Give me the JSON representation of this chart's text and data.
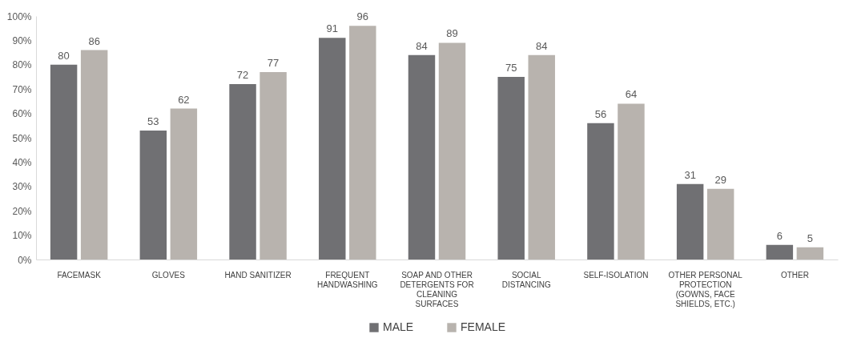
{
  "chart_data": {
    "type": "bar",
    "categories": [
      "FACEMASK",
      "GLOVES",
      "HAND SANITIZER",
      "FREQUENT HANDWASHING",
      "SOAP AND OTHER DETERGENTS FOR CLEANING SURFACES",
      "SOCIAL DISTANCING",
      "SELF-ISOLATION",
      "OTHER PERSONAL PROTECTION (GOWNS, FACE SHIELDS, ETC.)",
      "OTHER"
    ],
    "series": [
      {
        "name": "MALE",
        "color": "#707073",
        "values": [
          80,
          53,
          72,
          91,
          84,
          75,
          56,
          31,
          6
        ]
      },
      {
        "name": "FEMALE",
        "color": "#b8b3ae",
        "values": [
          86,
          62,
          77,
          96,
          89,
          84,
          64,
          29,
          5
        ]
      }
    ],
    "ylim": [
      0,
      100
    ],
    "yticks": [
      {
        "value": 0,
        "label": "0%"
      },
      {
        "value": 10,
        "label": "10%"
      },
      {
        "value": 20,
        "label": "20%"
      },
      {
        "value": 30,
        "label": "30%"
      },
      {
        "value": 40,
        "label": "40%"
      },
      {
        "value": 50,
        "label": "50%"
      },
      {
        "value": 60,
        "label": "60%"
      },
      {
        "value": 70,
        "label": "70%"
      },
      {
        "value": 80,
        "label": "80%"
      },
      {
        "value": 90,
        "label": "90%"
      },
      {
        "value": 100,
        "label": "100%"
      }
    ],
    "grid": false,
    "legend": "bottom",
    "data_labels": true
  }
}
